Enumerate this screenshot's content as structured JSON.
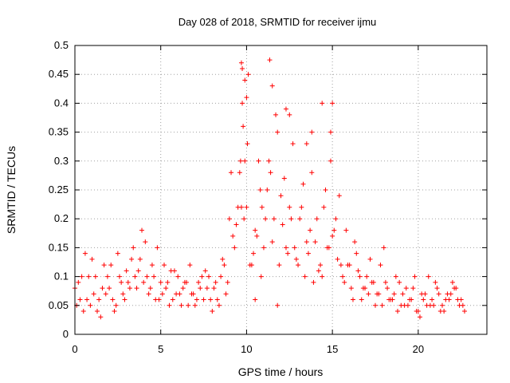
{
  "chart_data": {
    "type": "scatter",
    "title": "Day 028 of 2018, SRMTID for receiver ijmu",
    "xlabel": "GPS time / hours",
    "ylabel": "SRMTID / TECUs",
    "xlim": [
      0,
      24
    ],
    "ylim": [
      0,
      0.5
    ],
    "xticks": [
      0,
      5,
      10,
      15,
      20
    ],
    "xtick_labels": [
      "0",
      "5",
      "10",
      "15",
      "20"
    ],
    "yticks": [
      0,
      0.05,
      0.1,
      0.15,
      0.2,
      0.25,
      0.3,
      0.35,
      0.4,
      0.45,
      0.5
    ],
    "ytick_labels": [
      "0",
      "0.05",
      "0.1",
      "0.15",
      "0.2",
      "0.25",
      "0.3",
      "0.35",
      "0.4",
      "0.45",
      "0.5"
    ],
    "grid": true,
    "marker": "+",
    "series": [
      {
        "name": "SRMTID",
        "color": "#ff0000",
        "x": [
          0.0,
          0.3,
          0.6,
          0.9,
          1.2,
          1.5,
          1.8,
          2.1,
          2.4,
          2.7,
          3.0,
          3.3,
          3.6,
          3.9,
          4.2,
          4.5,
          4.8,
          5.1,
          5.4,
          5.7,
          6.0,
          6.3,
          6.6,
          6.9,
          7.2,
          7.5,
          7.8,
          8.1,
          8.4,
          8.7,
          9.0,
          9.3,
          9.6,
          9.8,
          10.0,
          10.2,
          10.5,
          10.8,
          11.0,
          11.3,
          11.6,
          11.9,
          12.2,
          12.5,
          12.8,
          13.1,
          13.4,
          13.7,
          14.0,
          14.3,
          14.6,
          14.9,
          15.2,
          15.5,
          15.8,
          16.1,
          16.4,
          16.7,
          17.0,
          17.3,
          17.6,
          17.9,
          18.2,
          18.5,
          18.8,
          19.1,
          19.4,
          19.7,
          20.0,
          20.3,
          20.6,
          20.9,
          21.2,
          21.5,
          21.8,
          22.1,
          22.4,
          22.7,
          0.1,
          0.4,
          0.7,
          1.0,
          1.3,
          1.6,
          1.9,
          2.2,
          2.5,
          2.8,
          3.1,
          3.4,
          3.7,
          4.0,
          4.3,
          4.6,
          4.9,
          5.2,
          5.5,
          5.8,
          6.1,
          6.4,
          6.7,
          7.0,
          7.3,
          7.6,
          7.9,
          8.2,
          8.5,
          8.8,
          9.1,
          9.4,
          9.7,
          9.9,
          10.1,
          10.4,
          10.7,
          10.9,
          11.2,
          11.5,
          11.8,
          12.1,
          12.4,
          12.7,
          13.0,
          13.3,
          13.6,
          13.9,
          14.2,
          14.5,
          14.8,
          15.1,
          15.4,
          15.7,
          16.0,
          16.3,
          16.6,
          16.9,
          17.2,
          17.5,
          17.8,
          18.1,
          18.4,
          18.7,
          19.0,
          19.3,
          19.6,
          19.9,
          20.2,
          20.5,
          20.8,
          21.1,
          21.4,
          21.7,
          22.0,
          22.3,
          22.6,
          0.2,
          0.5,
          0.8,
          1.1,
          1.4,
          1.7,
          2.0,
          2.3,
          2.6,
          2.9,
          3.2,
          3.5,
          3.8,
          4.1,
          4.4,
          4.7,
          5.0,
          5.3,
          5.6,
          5.9,
          6.2,
          6.5,
          6.8,
          7.1,
          7.4,
          7.7,
          8.0,
          8.3,
          8.6,
          8.9,
          9.2,
          9.5,
          9.65,
          9.75,
          9.85,
          10.05,
          10.3,
          10.6,
          10.85,
          11.1,
          11.4,
          11.7,
          12.0,
          12.3,
          12.6,
          12.9,
          13.2,
          13.5,
          13.8,
          14.1,
          14.4,
          14.7,
          15.0,
          15.3,
          15.6,
          15.9,
          16.2,
          16.5,
          16.8,
          17.1,
          17.4,
          17.7,
          18.0,
          18.3,
          18.6,
          18.9,
          19.2,
          19.5,
          19.8,
          20.1,
          20.4,
          20.7,
          21.0,
          21.3,
          21.6,
          21.9,
          22.2,
          22.5,
          9.7,
          9.75,
          9.9,
          10.0,
          11.35,
          11.5,
          12.3,
          12.5,
          13.8,
          14.4,
          14.9,
          15.0,
          13.5,
          10.5,
          11.8
        ],
        "y": [
          0.08,
          0.06,
          0.14,
          0.05,
          0.1,
          0.03,
          0.07,
          0.12,
          0.05,
          0.09,
          0.11,
          0.13,
          0.08,
          0.18,
          0.1,
          0.12,
          0.15,
          0.07,
          0.09,
          0.06,
          0.1,
          0.08,
          0.05,
          0.07,
          0.09,
          0.06,
          0.1,
          0.08,
          0.05,
          0.12,
          0.2,
          0.15,
          0.28,
          0.36,
          0.22,
          0.12,
          0.18,
          0.25,
          0.15,
          0.3,
          0.2,
          0.12,
          0.27,
          0.22,
          0.15,
          0.2,
          0.1,
          0.18,
          0.16,
          0.12,
          0.25,
          0.3,
          0.2,
          0.12,
          0.18,
          0.08,
          0.14,
          0.06,
          0.1,
          0.09,
          0.07,
          0.05,
          0.08,
          0.06,
          0.04,
          0.07,
          0.05,
          0.08,
          0.04,
          0.06,
          0.1,
          0.05,
          0.07,
          0.04,
          0.06,
          0.08,
          0.05,
          0.04,
          0.05,
          0.1,
          0.06,
          0.13,
          0.04,
          0.08,
          0.1,
          0.06,
          0.14,
          0.07,
          0.09,
          0.15,
          0.11,
          0.09,
          0.07,
          0.1,
          0.06,
          0.12,
          0.05,
          0.11,
          0.07,
          0.09,
          0.12,
          0.05,
          0.08,
          0.11,
          0.06,
          0.09,
          0.1,
          0.07,
          0.28,
          0.19,
          0.22,
          0.3,
          0.45,
          0.14,
          0.3,
          0.22,
          0.25,
          0.16,
          0.35,
          0.19,
          0.14,
          0.33,
          0.12,
          0.26,
          0.14,
          0.09,
          0.11,
          0.22,
          0.15,
          0.18,
          0.24,
          0.09,
          0.12,
          0.16,
          0.1,
          0.08,
          0.13,
          0.05,
          0.12,
          0.09,
          0.06,
          0.1,
          0.05,
          0.08,
          0.06,
          0.04,
          0.07,
          0.05,
          0.06,
          0.08,
          0.05,
          0.07,
          0.09,
          0.06,
          0.05,
          0.09,
          0.04,
          0.1,
          0.07,
          0.06,
          0.12,
          0.08,
          0.04,
          0.1,
          0.06,
          0.08,
          0.1,
          0.13,
          0.16,
          0.08,
          0.06,
          0.09,
          0.08,
          0.11,
          0.07,
          0.05,
          0.09,
          0.07,
          0.06,
          0.1,
          0.08,
          0.04,
          0.06,
          0.13,
          0.09,
          0.17,
          0.22,
          0.3,
          0.4,
          0.2,
          0.33,
          0.12,
          0.17,
          0.1,
          0.2,
          0.28,
          0.38,
          0.24,
          0.15,
          0.2,
          0.13,
          0.22,
          0.16,
          0.28,
          0.2,
          0.1,
          0.15,
          0.17,
          0.13,
          0.1,
          0.12,
          0.06,
          0.11,
          0.08,
          0.07,
          0.09,
          0.07,
          0.15,
          0.06,
          0.07,
          0.09,
          0.05,
          0.06,
          0.1,
          0.03,
          0.07,
          0.05,
          0.09,
          0.04,
          0.06,
          0.07,
          0.08,
          0.06,
          0.47,
          0.46,
          0.44,
          0.41,
          0.475,
          0.43,
          0.39,
          0.38,
          0.35,
          0.4,
          0.35,
          0.4,
          0.33,
          0.06,
          0.05
        ]
      }
    ]
  }
}
